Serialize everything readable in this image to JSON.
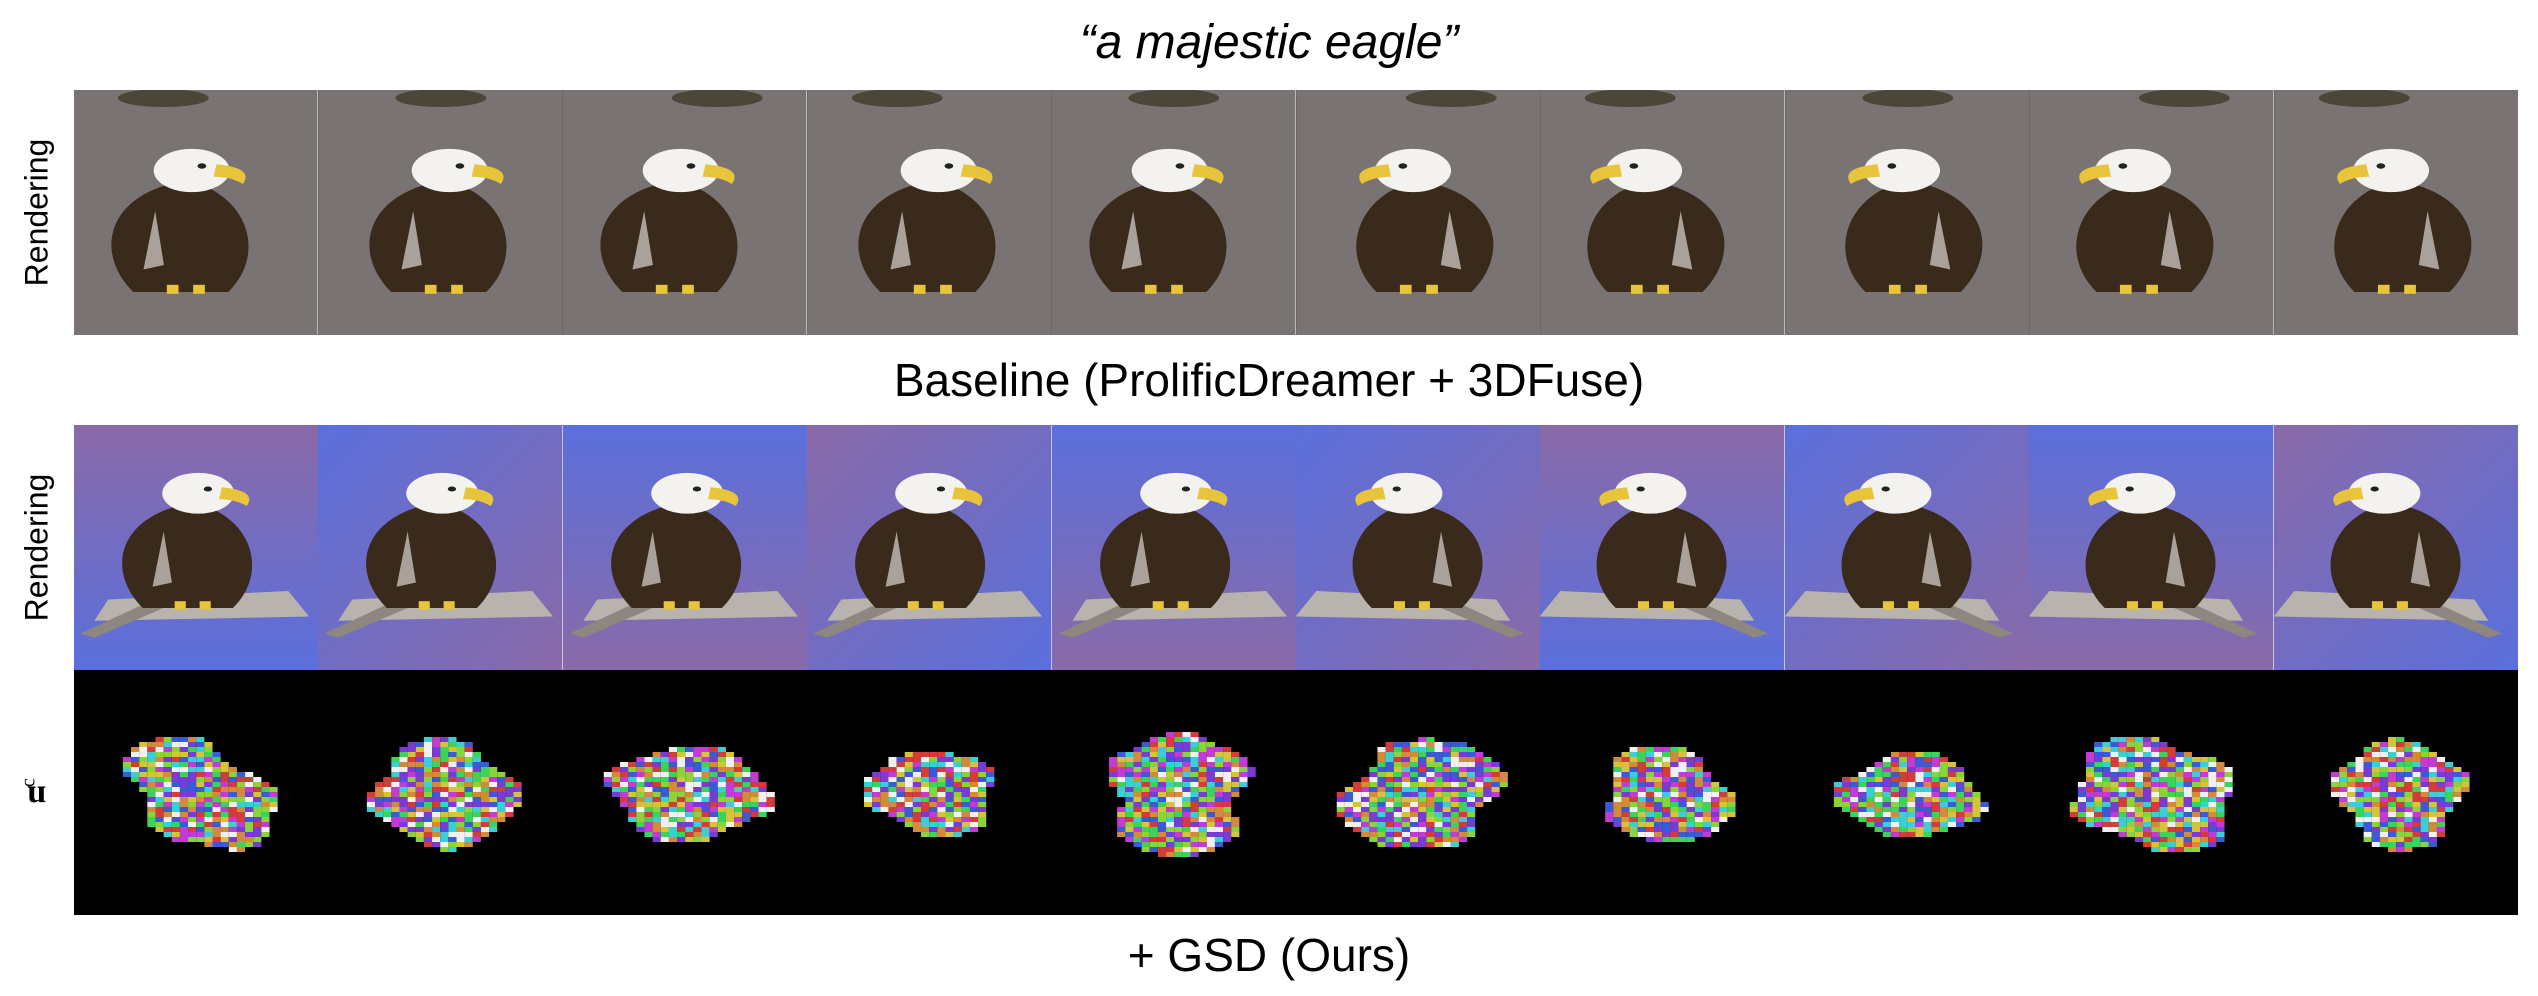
{
  "prompt": "“a majestic eagle”",
  "baseline_caption": "Baseline (ProlificDreamer + 3DFuse)",
  "ours_caption": "+ GSD (Ours)",
  "row_labels": {
    "rendering": "Rendering",
    "nc_base": "n",
    "nc_sup": "c"
  },
  "colors": {
    "baseline_bg": "#7a7373",
    "ours_bg_blue": "#5a6fdc",
    "ours_bg_purple": "#8a6aa8",
    "nc_bg": "#000000",
    "eagle_white": "#f4f2ee",
    "eagle_brown": "#3a2a1c",
    "beak_yellow": "#e8c43a"
  },
  "views": 10
}
